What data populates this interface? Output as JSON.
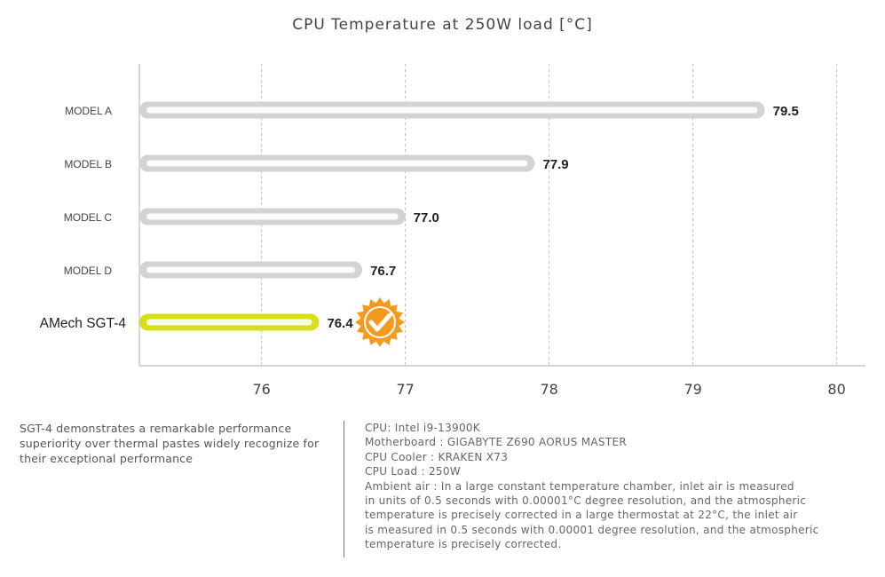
{
  "chart_data": {
    "type": "bar",
    "orientation": "horizontal",
    "title": "CPU Temperature at 250W load [°C]",
    "categories": [
      "MODEL A",
      "MODEL B",
      "MODEL C",
      "MODEL D",
      "AMech SGT-4"
    ],
    "values": [
      79.5,
      77.9,
      77.0,
      76.7,
      76.4
    ],
    "value_labels": [
      "79.5",
      "77.9",
      "77.0",
      "76.7",
      "76.4"
    ],
    "highlight": "AMech SGT-4",
    "x_ticks": [
      "76",
      "77",
      "78",
      "79",
      "80"
    ],
    "xlim": [
      75.15,
      80.2
    ],
    "grid": "vertical dashed",
    "colors": {
      "bar": "#d3d3d3",
      "highlight": "#d6e01a",
      "badge": "#f39a1f",
      "grid": "#bbbbbb"
    }
  },
  "notes": {
    "left_text": "SGT-4 demonstrates a remarkable performance superiority over thermal pastes widely recognize for their exceptional performance",
    "specs": [
      "CPU: Intel i9-13900K",
      "Motherboard : GIGABYTE Z690 AORUS MASTER",
      "CPU Cooler : KRAKEN X73",
      "CPU Load : 250W",
      "Ambient air : In a large constant temperature chamber, inlet air is measured",
      "in units of 0.5 seconds with 0.00001°C degree resolution, and the atmospheric",
      "temperature is precisely corrected in a large thermostat at 22°C, the inlet air",
      "is measured in 0.5 seconds with 0.00001 degree resolution, and the atmospheric",
      "temperature is precisely corrected."
    ]
  }
}
